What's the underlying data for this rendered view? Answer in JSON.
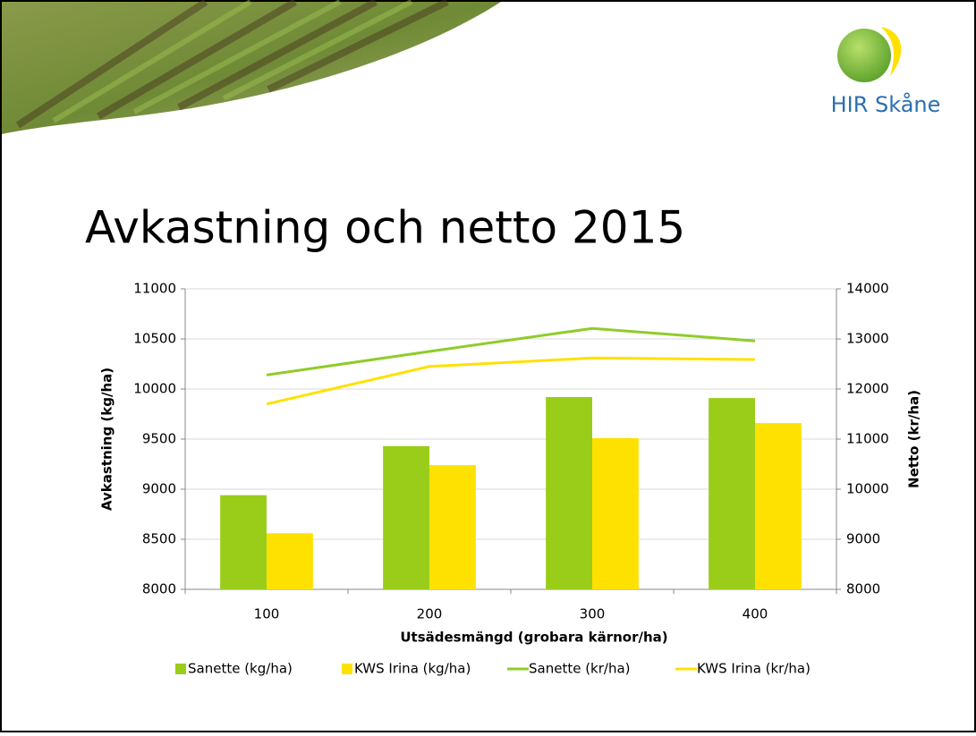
{
  "header": {
    "logo_text": "HIR Skåne"
  },
  "chart_data": {
    "type": "bar",
    "title": "Avkastning och netto 2015",
    "x_label": "Utsädesmängd (grobara kärnor/ha)",
    "y_label": "Avkastning (kg/ha)",
    "y2_label": "Netto (kr/ha)",
    "categories": [
      "100",
      "200",
      "300",
      "400"
    ],
    "series": [
      {
        "name": "Sanette (kg/ha)",
        "type": "bar",
        "color": "#9acd1a",
        "values": [
          8940,
          9430,
          9920,
          9910
        ]
      },
      {
        "name": "KWS Irina (kg/ha)",
        "type": "bar",
        "color": "#ffe100",
        "values": [
          8560,
          9240,
          9510,
          9660
        ]
      },
      {
        "name": "Sanette (kr/ha)",
        "type": "line",
        "axis": "y2",
        "color": "#8fcc2a",
        "values": [
          12280,
          12750,
          13210,
          12960
        ]
      },
      {
        "name": "KWS Irina (kr/ha)",
        "type": "line",
        "axis": "y2",
        "color": "#ffe100",
        "values": [
          11700,
          12450,
          12620,
          12590
        ]
      }
    ],
    "ylim": [
      8000,
      11000
    ],
    "yticks": [
      8000,
      8500,
      9000,
      9500,
      10000,
      10500,
      11000
    ],
    "y2lim": [
      8000,
      14000
    ],
    "y2ticks": [
      8000,
      9000,
      10000,
      11000,
      12000,
      13000,
      14000
    ],
    "grid": true,
    "legend": "bottom"
  }
}
